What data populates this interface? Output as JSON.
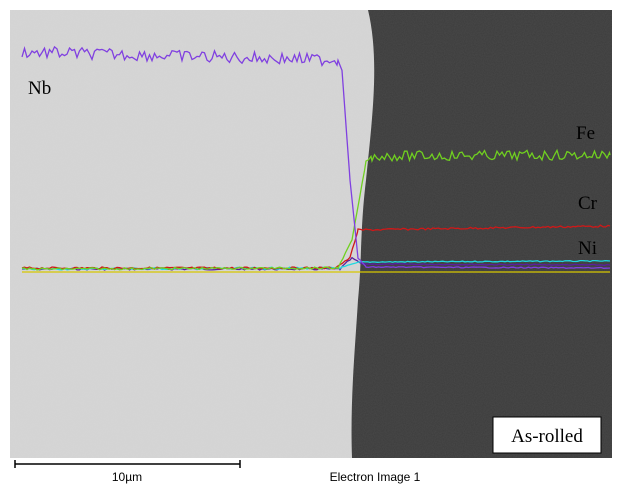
{
  "labels": {
    "nb": "Nb",
    "fe": "Fe",
    "cr": "Cr",
    "ni": "Ni"
  },
  "condition": "As-rolled",
  "scale_bar": "10µm",
  "caption": "Electron Image 1"
}
